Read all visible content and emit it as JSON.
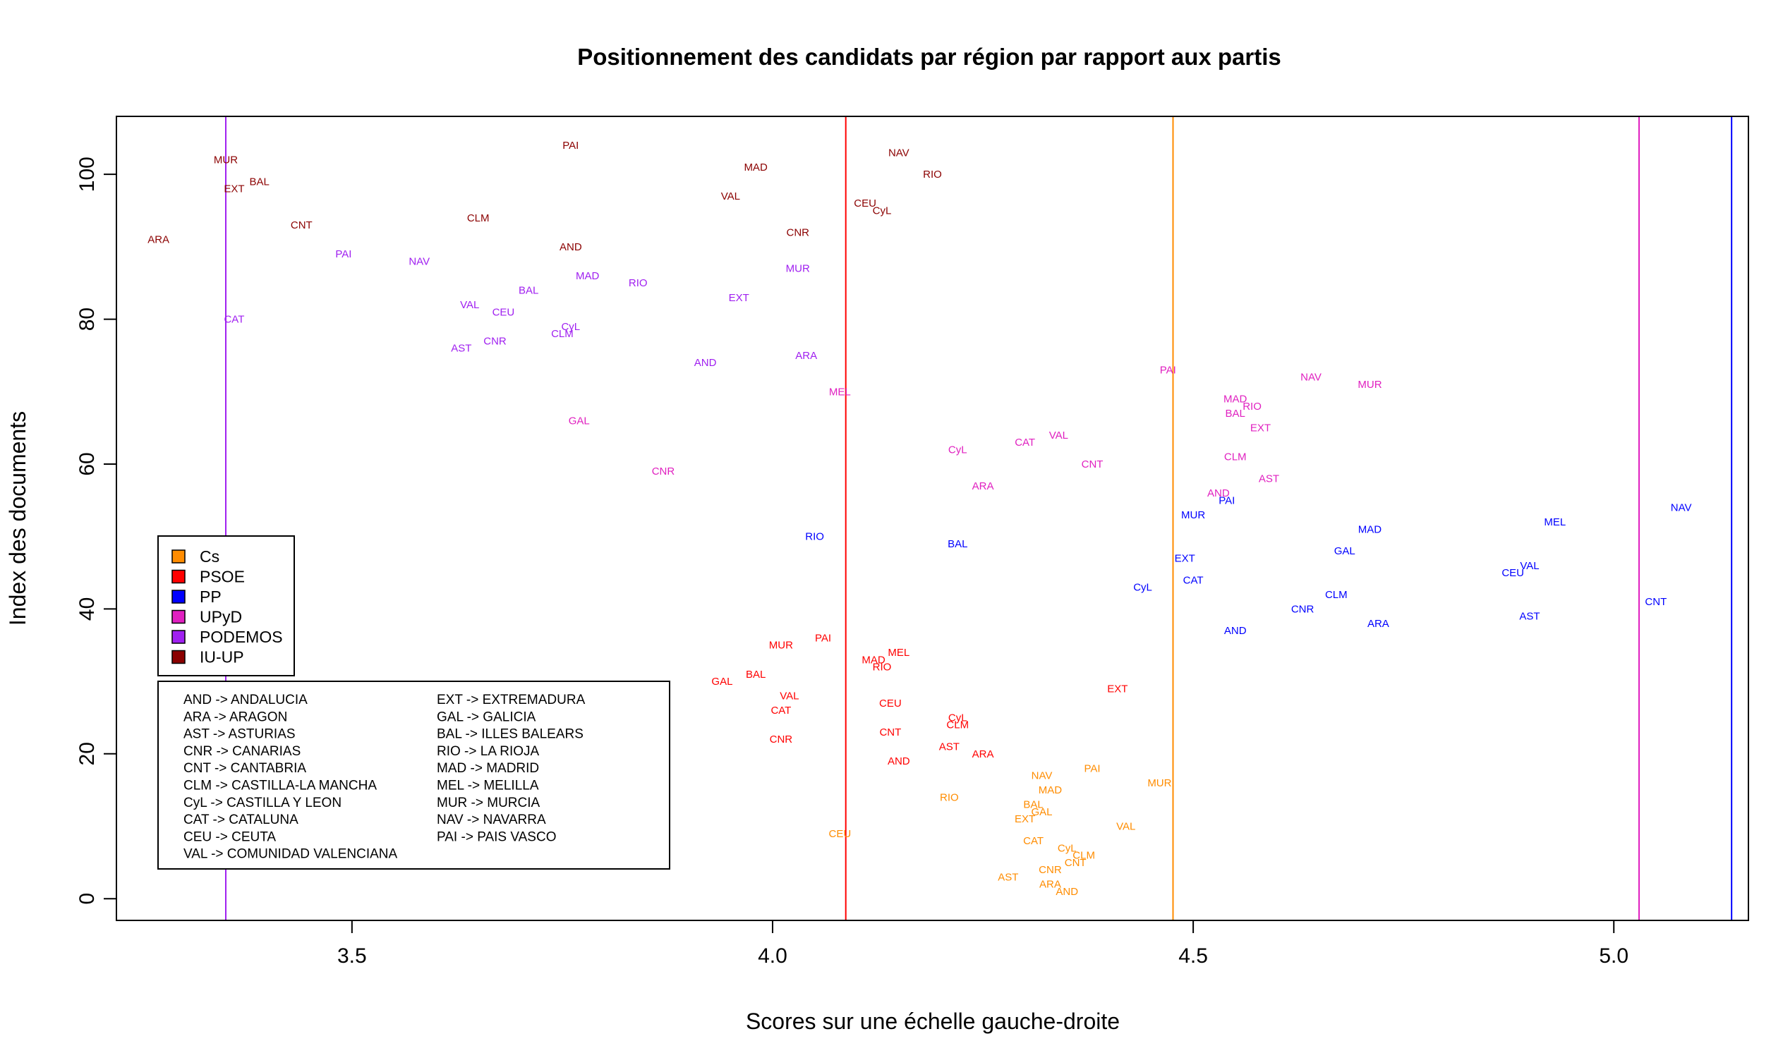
{
  "chart_data": {
    "type": "scatter",
    "title": "Positionnement des candidats par région par rapport aux partis",
    "xlabel": "Scores sur une échelle gauche-droite",
    "ylabel": "Index des documents",
    "xlim": [
      3.22,
      5.16
    ],
    "ylim": [
      -3,
      108
    ],
    "x_ticks": [
      3.5,
      4.0,
      4.5,
      5.0
    ],
    "x_tick_labels": [
      "3.5",
      "4.0",
      "4.5",
      "5.0"
    ],
    "y_ticks": [
      0,
      20,
      40,
      60,
      80,
      100
    ],
    "y_tick_labels": [
      "0",
      "20",
      "40",
      "60",
      "80",
      "100"
    ],
    "grid": false,
    "legend_position": "bottom-left",
    "party_lines": [
      {
        "party": "PODEMOS",
        "x": 3.35,
        "color": "#A020F0"
      },
      {
        "party": "PSOE",
        "x": 4.087,
        "color": "#FF0000"
      },
      {
        "party": "Cs",
        "x": 4.476,
        "color": "#FF8C00"
      },
      {
        "party": "UPyD",
        "x": 5.03,
        "color": "#E020C0"
      },
      {
        "party": "PP",
        "x": 5.14,
        "color": "#0000FF"
      }
    ],
    "series": [
      {
        "name": "Cs",
        "color": "#FF8C00",
        "points": [
          {
            "label": "CEU",
            "x": 4.08,
            "y": 9
          },
          {
            "label": "RIO",
            "x": 4.21,
            "y": 14
          },
          {
            "label": "AST",
            "x": 4.28,
            "y": 3
          },
          {
            "label": "NAV",
            "x": 4.32,
            "y": 17
          },
          {
            "label": "MAD",
            "x": 4.33,
            "y": 15
          },
          {
            "label": "BAL",
            "x": 4.31,
            "y": 13
          },
          {
            "label": "GAL",
            "x": 4.32,
            "y": 12
          },
          {
            "label": "EXT",
            "x": 4.3,
            "y": 11
          },
          {
            "label": "CAT",
            "x": 4.31,
            "y": 8
          },
          {
            "label": "CyL",
            "x": 4.35,
            "y": 7
          },
          {
            "label": "CLM",
            "x": 4.37,
            "y": 6
          },
          {
            "label": "CNT",
            "x": 4.36,
            "y": 5
          },
          {
            "label": "CNR",
            "x": 4.33,
            "y": 4
          },
          {
            "label": "ARA",
            "x": 4.33,
            "y": 2
          },
          {
            "label": "AND",
            "x": 4.35,
            "y": 1
          },
          {
            "label": "PAI",
            "x": 4.38,
            "y": 18
          },
          {
            "label": "VAL",
            "x": 4.42,
            "y": 10
          },
          {
            "label": "MUR",
            "x": 4.46,
            "y": 16
          }
        ]
      },
      {
        "name": "PSOE",
        "color": "#FF0000",
        "points": [
          {
            "label": "MUR",
            "x": 4.01,
            "y": 35
          },
          {
            "label": "PAI",
            "x": 4.06,
            "y": 36
          },
          {
            "label": "BAL",
            "x": 3.98,
            "y": 31
          },
          {
            "label": "GAL",
            "x": 3.94,
            "y": 30
          },
          {
            "label": "VAL",
            "x": 4.02,
            "y": 28
          },
          {
            "label": "CAT",
            "x": 4.01,
            "y": 26
          },
          {
            "label": "CNR",
            "x": 4.01,
            "y": 22
          },
          {
            "label": "MAD",
            "x": 4.12,
            "y": 33
          },
          {
            "label": "RIO",
            "x": 4.13,
            "y": 32
          },
          {
            "label": "MEL",
            "x": 4.15,
            "y": 34
          },
          {
            "label": "CEU",
            "x": 4.14,
            "y": 27
          },
          {
            "label": "CyL",
            "x": 4.22,
            "y": 25
          },
          {
            "label": "CLM",
            "x": 4.22,
            "y": 24
          },
          {
            "label": "CNT",
            "x": 4.14,
            "y": 23
          },
          {
            "label": "AST",
            "x": 4.21,
            "y": 21
          },
          {
            "label": "ARA",
            "x": 4.25,
            "y": 20
          },
          {
            "label": "AND",
            "x": 4.15,
            "y": 19
          },
          {
            "label": "EXT",
            "x": 4.41,
            "y": 29
          }
        ]
      },
      {
        "name": "PP",
        "color": "#0000FF",
        "points": [
          {
            "label": "RIO",
            "x": 4.05,
            "y": 50
          },
          {
            "label": "BAL",
            "x": 4.22,
            "y": 49
          },
          {
            "label": "CyL",
            "x": 4.44,
            "y": 43
          },
          {
            "label": "EXT",
            "x": 4.49,
            "y": 47
          },
          {
            "label": "CAT",
            "x": 4.5,
            "y": 44
          },
          {
            "label": "MUR",
            "x": 4.5,
            "y": 53
          },
          {
            "label": "PAI",
            "x": 4.54,
            "y": 55
          },
          {
            "label": "AND",
            "x": 4.55,
            "y": 37
          },
          {
            "label": "CNR",
            "x": 4.63,
            "y": 40
          },
          {
            "label": "CLM",
            "x": 4.67,
            "y": 42
          },
          {
            "label": "GAL",
            "x": 4.68,
            "y": 48
          },
          {
            "label": "MAD",
            "x": 4.71,
            "y": 51
          },
          {
            "label": "ARA",
            "x": 4.72,
            "y": 38
          },
          {
            "label": "CEU",
            "x": 4.88,
            "y": 45
          },
          {
            "label": "VAL",
            "x": 4.9,
            "y": 46
          },
          {
            "label": "AST",
            "x": 4.9,
            "y": 39
          },
          {
            "label": "MEL",
            "x": 4.93,
            "y": 52
          },
          {
            "label": "CNT",
            "x": 5.05,
            "y": 41
          },
          {
            "label": "NAV",
            "x": 5.08,
            "y": 54
          }
        ]
      },
      {
        "name": "UPyD",
        "color": "#E020C0",
        "points": [
          {
            "label": "GAL",
            "x": 3.77,
            "y": 66
          },
          {
            "label": "CNR",
            "x": 3.87,
            "y": 59
          },
          {
            "label": "MEL",
            "x": 4.08,
            "y": 70
          },
          {
            "label": "CyL",
            "x": 4.22,
            "y": 62
          },
          {
            "label": "ARA",
            "x": 4.25,
            "y": 57
          },
          {
            "label": "CAT",
            "x": 4.3,
            "y": 63
          },
          {
            "label": "VAL",
            "x": 4.34,
            "y": 64
          },
          {
            "label": "CNT",
            "x": 4.38,
            "y": 60
          },
          {
            "label": "PAI",
            "x": 4.47,
            "y": 73
          },
          {
            "label": "AND",
            "x": 4.53,
            "y": 56
          },
          {
            "label": "MAD",
            "x": 4.55,
            "y": 69
          },
          {
            "label": "BAL",
            "x": 4.55,
            "y": 67
          },
          {
            "label": "RIO",
            "x": 4.57,
            "y": 68
          },
          {
            "label": "CLM",
            "x": 4.55,
            "y": 61
          },
          {
            "label": "EXT",
            "x": 4.58,
            "y": 65
          },
          {
            "label": "AST",
            "x": 4.59,
            "y": 58
          },
          {
            "label": "NAV",
            "x": 4.64,
            "y": 72
          },
          {
            "label": "MUR",
            "x": 4.71,
            "y": 71
          }
        ]
      },
      {
        "name": "PODEMOS",
        "color": "#A020F0",
        "points": [
          {
            "label": "CAT",
            "x": 3.36,
            "y": 80
          },
          {
            "label": "PAI",
            "x": 3.49,
            "y": 89
          },
          {
            "label": "NAV",
            "x": 3.58,
            "y": 88
          },
          {
            "label": "VAL",
            "x": 3.64,
            "y": 82
          },
          {
            "label": "AST",
            "x": 3.63,
            "y": 76
          },
          {
            "label": "CNR",
            "x": 3.67,
            "y": 77
          },
          {
            "label": "CEU",
            "x": 3.68,
            "y": 81
          },
          {
            "label": "BAL",
            "x": 3.71,
            "y": 84
          },
          {
            "label": "CyL",
            "x": 3.76,
            "y": 79
          },
          {
            "label": "CLM",
            "x": 3.75,
            "y": 78
          },
          {
            "label": "MAD",
            "x": 3.78,
            "y": 86
          },
          {
            "label": "RIO",
            "x": 3.84,
            "y": 85
          },
          {
            "label": "AND",
            "x": 3.92,
            "y": 74
          },
          {
            "label": "EXT",
            "x": 3.96,
            "y": 83
          },
          {
            "label": "MUR",
            "x": 4.03,
            "y": 87
          },
          {
            "label": "ARA",
            "x": 4.04,
            "y": 75
          }
        ]
      },
      {
        "name": "IU-UP",
        "color": "#8B0000",
        "points": [
          {
            "label": "ARA",
            "x": 3.27,
            "y": 91
          },
          {
            "label": "MUR",
            "x": 3.35,
            "y": 102
          },
          {
            "label": "EXT",
            "x": 3.36,
            "y": 98
          },
          {
            "label": "BAL",
            "x": 3.39,
            "y": 99
          },
          {
            "label": "CNT",
            "x": 3.44,
            "y": 93
          },
          {
            "label": "CLM",
            "x": 3.65,
            "y": 94
          },
          {
            "label": "AND",
            "x": 3.76,
            "y": 90
          },
          {
            "label": "PAI",
            "x": 3.76,
            "y": 104
          },
          {
            "label": "VAL",
            "x": 3.95,
            "y": 97
          },
          {
            "label": "MAD",
            "x": 3.98,
            "y": 101
          },
          {
            "label": "CNR",
            "x": 4.03,
            "y": 92
          },
          {
            "label": "CEU",
            "x": 4.11,
            "y": 96
          },
          {
            "label": "CyL",
            "x": 4.13,
            "y": 95
          },
          {
            "label": "NAV",
            "x": 4.15,
            "y": 103
          },
          {
            "label": "RIO",
            "x": 4.19,
            "y": 100
          }
        ]
      }
    ],
    "legend": [
      {
        "name": "Cs",
        "color": "#FF8C00"
      },
      {
        "name": "PSOE",
        "color": "#FF0000"
      },
      {
        "name": "PP",
        "color": "#0000FF"
      },
      {
        "name": "UPyD",
        "color": "#E020C0"
      },
      {
        "name": "PODEMOS",
        "color": "#A020F0"
      },
      {
        "name": "IU-UP",
        "color": "#8B0000"
      }
    ],
    "abbreviations": [
      "AND -> ANDALUCIA",
      "ARA -> ARAGON",
      "AST -> ASTURIAS",
      "CNR -> CANARIAS",
      "CNT -> CANTABRIA",
      "CLM -> CASTILLA-LA MANCHA",
      "CyL -> CASTILLA Y LEON",
      "CAT -> CATALUNA",
      "CEU -> CEUTA",
      "VAL -> COMUNIDAD VALENCIANA",
      "EXT -> EXTREMADURA",
      "GAL -> GALICIA",
      "BAL -> ILLES BALEARS",
      "RIO -> LA RIOJA",
      "MAD -> MADRID",
      "MEL -> MELILLA",
      "MUR -> MURCIA",
      "NAV -> NAVARRA",
      "PAI -> PAIS VASCO"
    ]
  }
}
